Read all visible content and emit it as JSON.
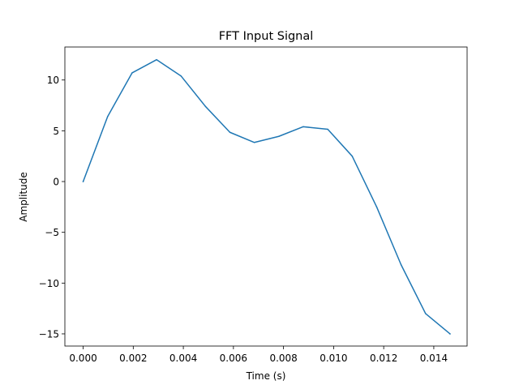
{
  "chart_data": {
    "type": "line",
    "title": "FFT Input Signal",
    "xlabel": "Time (s)",
    "ylabel": "Amplitude",
    "xlim": [
      -0.00073,
      0.01533
    ],
    "ylim": [
      -16.2,
      13.25
    ],
    "xticks": [
      0.0,
      0.002,
      0.004,
      0.006,
      0.008,
      0.01,
      0.012,
      0.014
    ],
    "xtick_labels": [
      "0.000",
      "0.002",
      "0.004",
      "0.006",
      "0.008",
      "0.010",
      "0.012",
      "0.014"
    ],
    "yticks": [
      10,
      5,
      0,
      -5,
      -10,
      -15
    ],
    "ytick_labels": [
      "10",
      "5",
      "0",
      "−5",
      "−10",
      "−15"
    ],
    "grid": false,
    "series": [
      {
        "color": "#1f77b4",
        "x": [
          0.0,
          0.000977,
          0.001953,
          0.00293,
          0.003906,
          0.004883,
          0.005859,
          0.006836,
          0.007813,
          0.008789,
          0.009766,
          0.010742,
          0.011719,
          0.012695,
          0.013672,
          0.014648
        ],
        "y": [
          0.0,
          6.4,
          10.7,
          12.0,
          10.4,
          7.4,
          4.85,
          3.85,
          4.45,
          5.4,
          5.15,
          2.5,
          -2.5,
          -8.2,
          -13.0,
          -15.0
        ]
      }
    ]
  }
}
